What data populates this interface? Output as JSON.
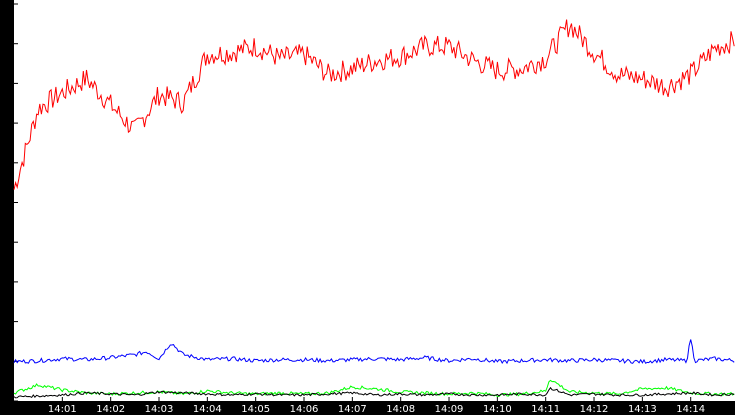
{
  "chart_data": {
    "type": "line",
    "title": "",
    "xlabel": "",
    "ylabel": "",
    "ylim": [
      0,
      1970
    ],
    "xlim": [
      "14:00:00",
      "14:14:55"
    ],
    "grid": false,
    "legend": "none",
    "background": "#ffffff",
    "axis_band_color": "#000000",
    "yticks": [
      0,
      197,
      394,
      591,
      788,
      985,
      1182,
      1379,
      1576,
      1773,
      1970
    ],
    "xticks": [
      "14:01",
      "14:02",
      "14:03",
      "14:04",
      "14:05",
      "14:06",
      "14:07",
      "14:08",
      "14:09",
      "14:10",
      "14:11",
      "14:12",
      "14:13",
      "14:14"
    ],
    "series": [
      {
        "color": "#ff0000",
        "x": [
          "14:00:00",
          "14:00:30",
          "14:01:00",
          "14:01:30",
          "14:02:00",
          "14:02:30",
          "14:03:00",
          "14:03:30",
          "14:04:00",
          "14:04:30",
          "14:05:00",
          "14:05:30",
          "14:06:00",
          "14:06:30",
          "14:07:00",
          "14:07:30",
          "14:08:00",
          "14:08:30",
          "14:09:00",
          "14:09:30",
          "14:10:00",
          "14:10:30",
          "14:11:00",
          "14:11:30",
          "14:12:00",
          "14:12:30",
          "14:13:00",
          "14:13:30",
          "14:14:00",
          "14:14:30",
          "14:14:55"
        ],
        "values": [
          1050,
          1450,
          1530,
          1600,
          1470,
          1340,
          1520,
          1480,
          1720,
          1730,
          1760,
          1700,
          1720,
          1620,
          1650,
          1690,
          1710,
          1760,
          1760,
          1690,
          1640,
          1650,
          1700,
          1870,
          1730,
          1620,
          1600,
          1560,
          1620,
          1750,
          1790
        ]
      },
      {
        "color": "#0000ff",
        "x": [
          "14:00:00",
          "14:00:30",
          "14:01:00",
          "14:01:30",
          "14:02:00",
          "14:02:30",
          "14:02:45",
          "14:03:00",
          "14:03:15",
          "14:03:30",
          "14:04:00",
          "14:04:30",
          "14:05:00",
          "14:05:30",
          "14:06:00",
          "14:06:30",
          "14:07:00",
          "14:07:30",
          "14:08:00",
          "14:08:30",
          "14:09:00",
          "14:09:30",
          "14:10:00",
          "14:10:30",
          "14:11:00",
          "14:11:30",
          "14:12:00",
          "14:12:30",
          "14:13:00",
          "14:13:30",
          "14:13:55",
          "14:14:00",
          "14:14:05",
          "14:14:30",
          "14:14:55"
        ],
        "values": [
          195,
          200,
          210,
          205,
          215,
          230,
          245,
          210,
          290,
          230,
          205,
          210,
          200,
          205,
          205,
          200,
          205,
          210,
          205,
          215,
          200,
          210,
          195,
          200,
          205,
          200,
          205,
          200,
          195,
          205,
          200,
          310,
          200,
          210,
          200
        ]
      },
      {
        "color": "#00ff00",
        "x": [
          "14:00:00",
          "14:00:30",
          "14:01:00",
          "14:01:30",
          "14:02:00",
          "14:02:30",
          "14:03:00",
          "14:03:30",
          "14:04:00",
          "14:04:30",
          "14:05:00",
          "14:05:30",
          "14:06:00",
          "14:06:30",
          "14:07:00",
          "14:07:30",
          "14:08:00",
          "14:08:30",
          "14:09:00",
          "14:09:30",
          "14:10:00",
          "14:10:30",
          "14:11:00",
          "14:11:05",
          "14:11:30",
          "14:12:00",
          "14:12:30",
          "14:13:00",
          "14:13:30",
          "14:14:00",
          "14:14:30",
          "14:14:55"
        ],
        "values": [
          40,
          80,
          55,
          40,
          35,
          40,
          45,
          35,
          50,
          40,
          35,
          40,
          35,
          40,
          70,
          60,
          45,
          40,
          35,
          40,
          30,
          35,
          50,
          110,
          45,
          40,
          35,
          60,
          65,
          40,
          35,
          35
        ]
      },
      {
        "color": "#000000",
        "x": [
          "14:00:00",
          "14:00:30",
          "14:01:00",
          "14:01:30",
          "14:02:00",
          "14:02:30",
          "14:03:00",
          "14:03:30",
          "14:04:00",
          "14:04:30",
          "14:05:00",
          "14:05:30",
          "14:06:00",
          "14:06:30",
          "14:07:00",
          "14:07:30",
          "14:08:00",
          "14:08:30",
          "14:09:00",
          "14:09:30",
          "14:10:00",
          "14:10:30",
          "14:11:00",
          "14:11:05",
          "14:11:30",
          "14:12:00",
          "14:12:30",
          "14:13:00",
          "14:13:30",
          "14:14:00",
          "14:14:30",
          "14:14:55"
        ],
        "values": [
          20,
          25,
          30,
          40,
          35,
          30,
          45,
          40,
          35,
          30,
          35,
          30,
          30,
          35,
          40,
          30,
          35,
          30,
          35,
          30,
          30,
          35,
          30,
          65,
          30,
          35,
          30,
          30,
          35,
          40,
          30,
          35
        ]
      }
    ]
  }
}
